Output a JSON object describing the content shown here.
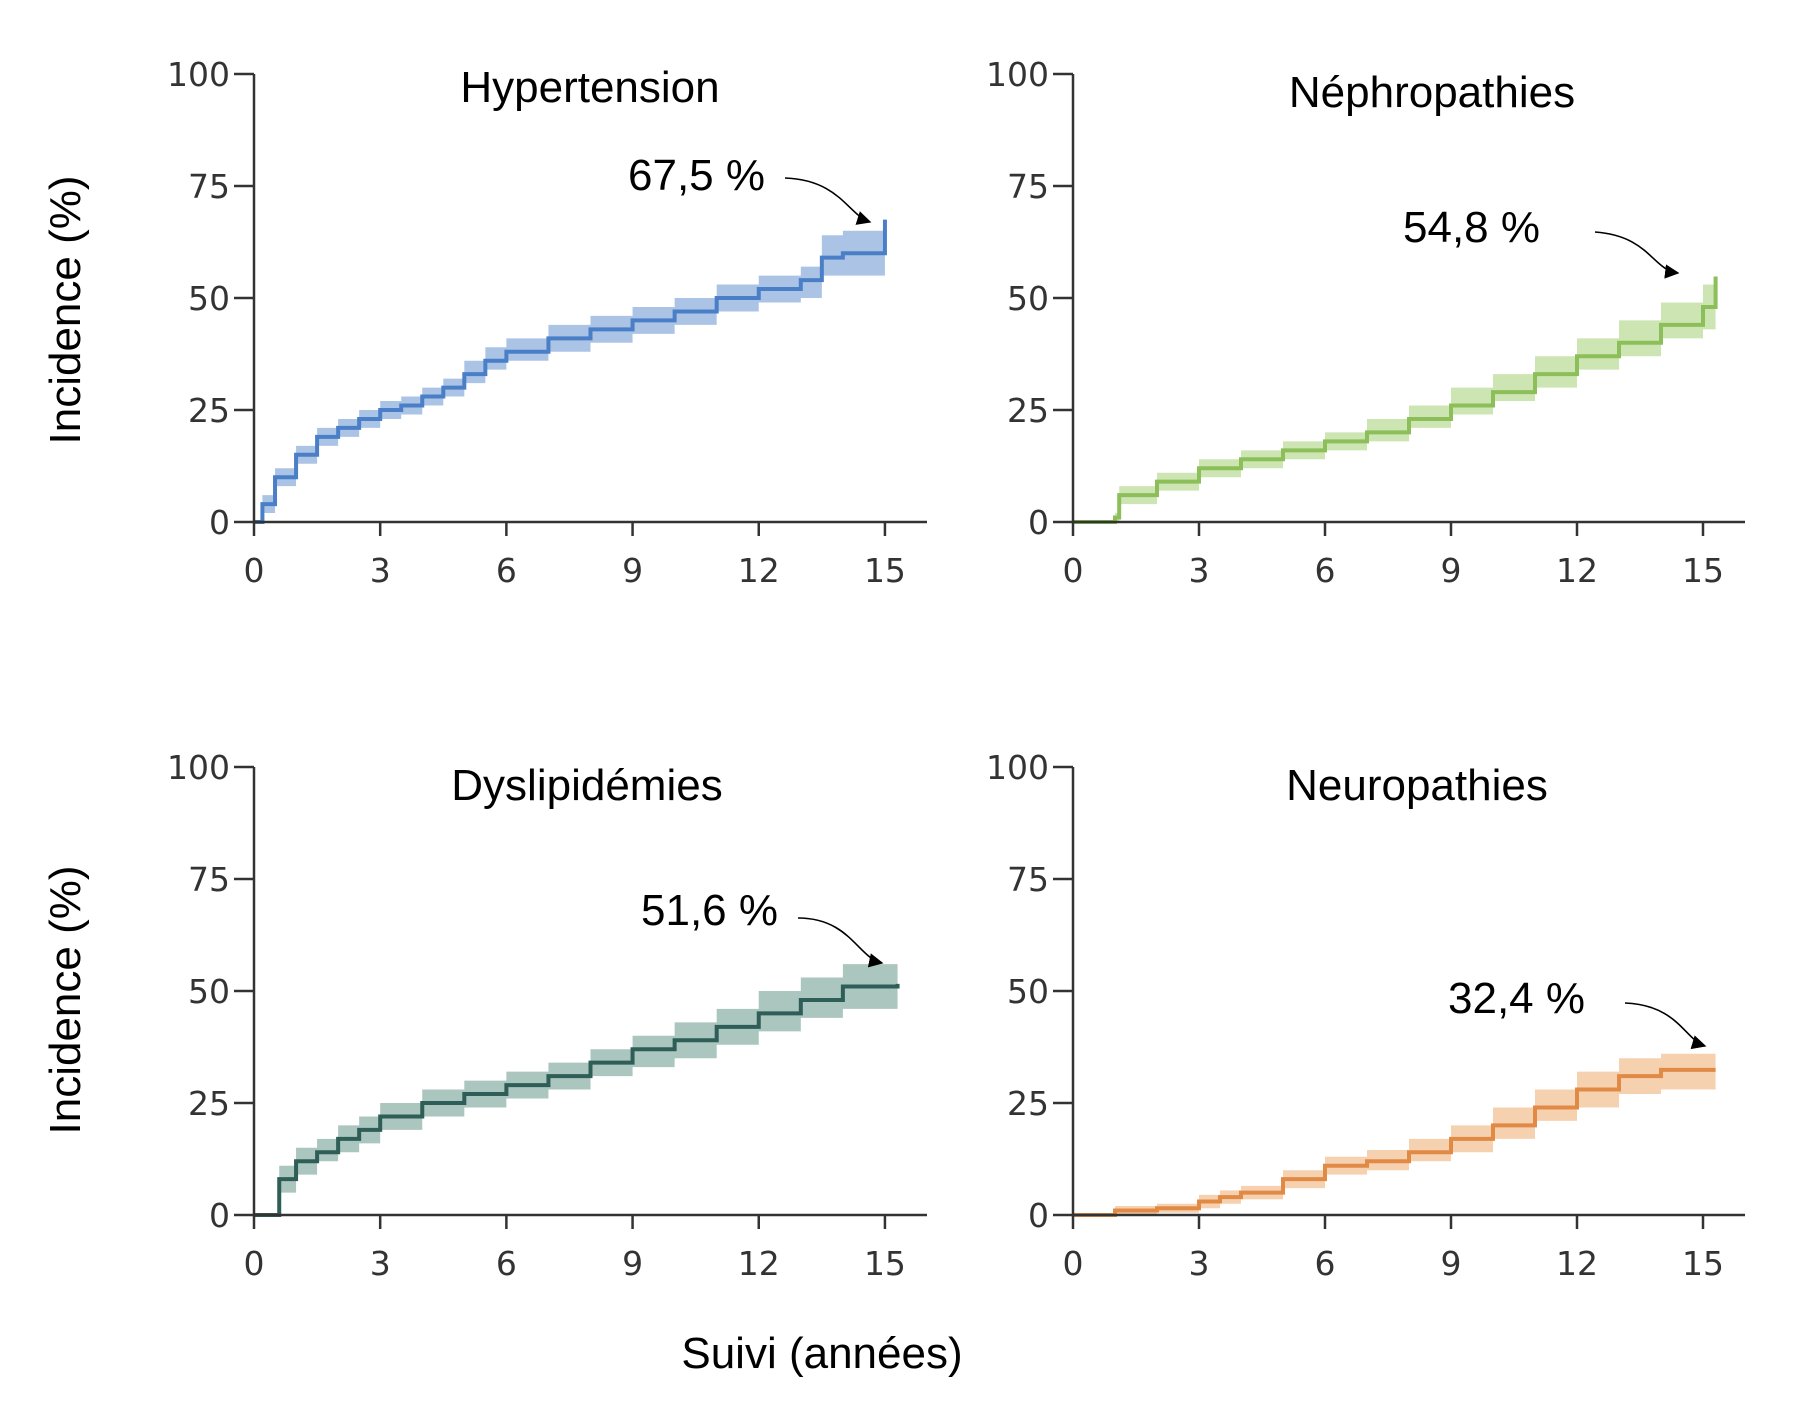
{
  "figure": {
    "y_axis_label": "Incidence (%)",
    "x_axis_label": "Suivi (années)"
  },
  "chart_data": [
    {
      "type": "line",
      "title": "Hypertension",
      "annotation": "67,5 %",
      "color": "#4a7fc7",
      "band_color": "#8fb0de",
      "xlim": [
        0,
        16
      ],
      "ylim": [
        0,
        100
      ],
      "x_ticks": [
        0,
        3,
        6,
        9,
        12,
        15
      ],
      "y_ticks": [
        0,
        25,
        50,
        75,
        100
      ],
      "x_tick_labels": [
        "0",
        "3",
        "6",
        "9",
        "12",
        "15"
      ],
      "y_tick_labels": [
        "0",
        "25",
        "50",
        "75",
        "100"
      ],
      "x": [
        0,
        0.2,
        0.5,
        1,
        1.5,
        2,
        2.5,
        3,
        3.5,
        4,
        4.5,
        5,
        5.5,
        6,
        7,
        8,
        9,
        10,
        11,
        12,
        13,
        13.5,
        14,
        15,
        15
      ],
      "y": [
        0,
        4,
        10,
        15,
        19,
        21,
        23,
        25,
        26,
        28,
        30,
        33,
        36,
        38,
        41,
        43,
        45,
        47,
        50,
        52,
        54,
        59,
        60,
        60,
        67.5
      ],
      "lower": [
        0,
        2,
        8,
        13,
        17,
        19,
        21,
        23,
        24,
        26,
        28,
        31,
        34,
        36,
        38,
        40,
        42,
        44,
        47,
        49,
        50,
        55,
        55,
        55,
        54
      ],
      "upper": [
        0,
        6,
        12,
        17,
        21,
        23,
        25,
        27,
        28,
        30,
        32,
        36,
        39,
        41,
        44,
        46,
        48,
        50,
        53,
        55,
        57,
        64,
        65,
        65,
        77
      ]
    },
    {
      "type": "line",
      "title": "Néphropathies",
      "annotation": "54,8 %",
      "color": "#8cbf5a",
      "band_color": "#bcdc9a",
      "xlim": [
        0,
        16
      ],
      "ylim": [
        0,
        100
      ],
      "x_ticks": [
        0,
        3,
        6,
        9,
        12,
        15
      ],
      "y_ticks": [
        0,
        25,
        50,
        75,
        100
      ],
      "x_tick_labels": [
        "0",
        "3",
        "6",
        "9",
        "12",
        "15"
      ],
      "y_tick_labels": [
        "0",
        "25",
        "50",
        "75",
        "100"
      ],
      "x": [
        0,
        1,
        1.1,
        2,
        3,
        4,
        5,
        6,
        7,
        8,
        9,
        10,
        11,
        12,
        13,
        14,
        15,
        15.3
      ],
      "y": [
        0,
        1,
        6,
        9,
        12,
        14,
        16,
        18,
        20,
        23,
        26,
        29,
        33,
        37,
        40,
        44,
        48,
        54.8
      ],
      "lower": [
        0,
        0,
        4,
        7,
        10,
        12,
        14,
        16,
        18,
        21,
        24,
        27,
        30,
        34,
        37,
        41,
        43,
        43
      ],
      "upper": [
        0,
        2,
        8,
        11,
        14,
        16,
        18,
        20,
        23,
        26,
        30,
        33,
        37,
        41,
        45,
        49,
        53,
        64
      ]
    },
    {
      "type": "line",
      "title": "Dyslipidémies",
      "annotation": "51,6 %",
      "color": "#2e5e57",
      "band_color": "#8fb2a9",
      "xlim": [
        0,
        16
      ],
      "ylim": [
        0,
        100
      ],
      "x_ticks": [
        0,
        3,
        6,
        9,
        12,
        15
      ],
      "y_ticks": [
        0,
        25,
        50,
        75,
        100
      ],
      "x_tick_labels": [
        "0",
        "3",
        "6",
        "9",
        "12",
        "15"
      ],
      "y_tick_labels": [
        "0",
        "25",
        "50",
        "75",
        "100"
      ],
      "x": [
        0,
        0.5,
        0.6,
        1,
        1.5,
        2,
        2.5,
        3,
        4,
        5,
        6,
        7,
        8,
        9,
        10,
        11,
        12,
        13,
        14,
        15.3
      ],
      "y": [
        0,
        0,
        8,
        12,
        14,
        17,
        19,
        22,
        25,
        27,
        29,
        31,
        34,
        37,
        39,
        42,
        45,
        48,
        51,
        51.6
      ],
      "lower": [
        0,
        0,
        5,
        9,
        12,
        14,
        16,
        19,
        22,
        24,
        26,
        28,
        31,
        33,
        35,
        38,
        41,
        44,
        46,
        47
      ],
      "upper": [
        0,
        0,
        11,
        15,
        17,
        20,
        22,
        25,
        28,
        30,
        32,
        34,
        37,
        40,
        43,
        46,
        50,
        53,
        56,
        57
      ]
    },
    {
      "type": "line",
      "title": "Neuropathies",
      "annotation": "32,4 %",
      "color": "#e08a45",
      "band_color": "#f3c195",
      "xlim": [
        0,
        16
      ],
      "ylim": [
        0,
        100
      ],
      "x_ticks": [
        0,
        3,
        6,
        9,
        12,
        15
      ],
      "y_ticks": [
        0,
        25,
        50,
        75,
        100
      ],
      "x_tick_labels": [
        "0",
        "3",
        "6",
        "9",
        "12",
        "15"
      ],
      "y_tick_labels": [
        "0",
        "25",
        "50",
        "75",
        "100"
      ],
      "x": [
        0,
        1,
        2,
        3,
        3.5,
        4,
        5,
        6,
        7,
        8,
        9,
        10,
        11,
        12,
        13,
        14,
        15.3
      ],
      "y": [
        0,
        1,
        1.5,
        3,
        4,
        5,
        8,
        11,
        12,
        14,
        17,
        20,
        24,
        28,
        31,
        32.4,
        32.4
      ],
      "lower": [
        0,
        0,
        0.5,
        1.5,
        2.5,
        3.5,
        6,
        9,
        10,
        12,
        14,
        17,
        21,
        24,
        27,
        28,
        28
      ],
      "upper": [
        0,
        2,
        2.5,
        4.5,
        5.5,
        6.5,
        10,
        13,
        14.5,
        17,
        20,
        24,
        28,
        32,
        35,
        36,
        37
      ]
    }
  ]
}
